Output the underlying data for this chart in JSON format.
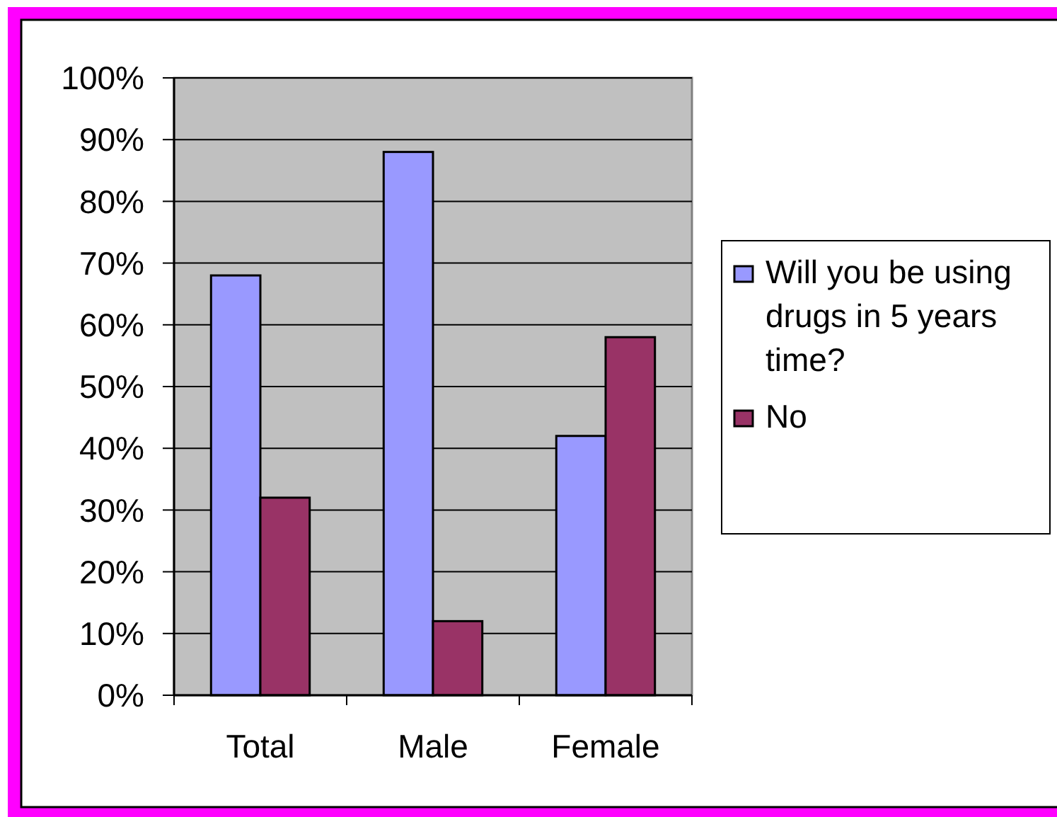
{
  "chart_data": {
    "type": "bar",
    "categories": [
      "Total",
      "Male",
      "Female"
    ],
    "series": [
      {
        "name": "Will you be using drugs in 5 years time?",
        "color": "#9999ff",
        "values": [
          68,
          88,
          42
        ]
      },
      {
        "name": "No",
        "color": "#993366",
        "values": [
          32,
          12,
          58
        ]
      }
    ],
    "ylim": [
      0,
      100
    ],
    "yticks": [
      {
        "value": 0,
        "label": "0%"
      },
      {
        "value": 10,
        "label": "10%"
      },
      {
        "value": 20,
        "label": "20%"
      },
      {
        "value": 30,
        "label": "30%"
      },
      {
        "value": 40,
        "label": "40%"
      },
      {
        "value": 50,
        "label": "50%"
      },
      {
        "value": 60,
        "label": "60%"
      },
      {
        "value": 70,
        "label": "70%"
      },
      {
        "value": 80,
        "label": "80%"
      },
      {
        "value": 90,
        "label": "90%"
      },
      {
        "value": 100,
        "label": "100%"
      }
    ],
    "grid": "y",
    "legend": "right"
  }
}
